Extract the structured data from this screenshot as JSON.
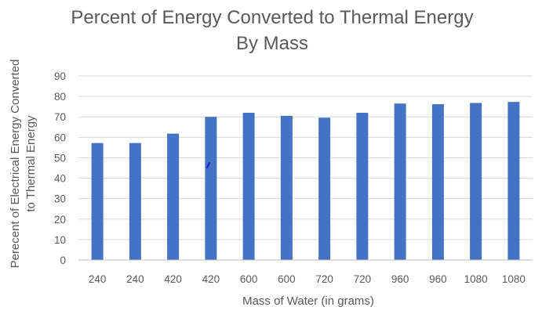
{
  "chart_data": {
    "type": "bar",
    "title_lines": [
      "Percent of Energy Converted to Thermal Energy",
      "By Mass"
    ],
    "xlabel": "Mass of Water (in grams)",
    "ylabel_lines": [
      "Perecent of Electrical Energy Converted",
      "to Thermal Energy"
    ],
    "categories": [
      "240",
      "240",
      "420",
      "420",
      "600",
      "600",
      "720",
      "720",
      "960",
      "960",
      "1080",
      "1080"
    ],
    "values": [
      57.2,
      57.2,
      61.8,
      70.0,
      72.0,
      70.5,
      69.6,
      72.0,
      76.5,
      76.2,
      76.8,
      77.3
    ],
    "ylim": [
      0,
      90
    ],
    "yticks": [
      0,
      10,
      20,
      30,
      40,
      50,
      60,
      70,
      80,
      90
    ],
    "grid": true,
    "bar_color": "#4472c4",
    "annotation_color": "#1f1fd6"
  }
}
